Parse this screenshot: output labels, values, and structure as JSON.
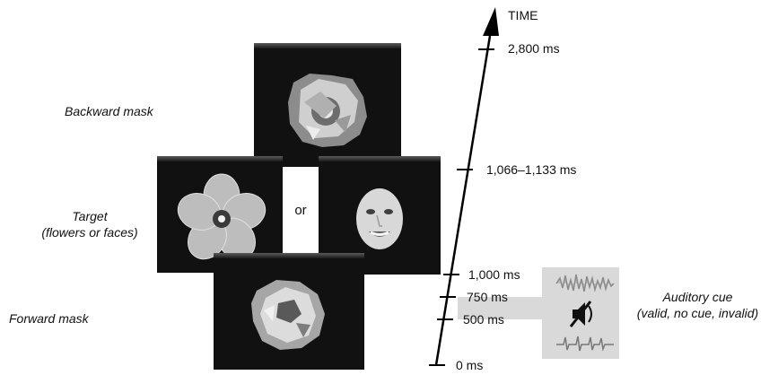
{
  "labels": {
    "backward_mask": "Backward mask",
    "target_line1": "Target",
    "target_line2": "(flowers or faces)",
    "forward_mask": "Forward mask",
    "or": "or",
    "auditory_line1": "Auditory cue",
    "auditory_line2": "(valid, no cue, invalid)"
  },
  "timeline": {
    "axis_label": "TIME",
    "ticks": [
      "0 ms",
      "500 ms",
      "750 ms",
      "1,000 ms",
      "1,066–1,133 ms",
      "2,800 ms"
    ]
  },
  "icons": {
    "mute": "mute-speaker-icon",
    "waveform_top": "waveform-icon",
    "waveform_bottom": "waveform-icon"
  },
  "colors": {
    "panel": "#111111",
    "callout": "#d9d9d9"
  }
}
